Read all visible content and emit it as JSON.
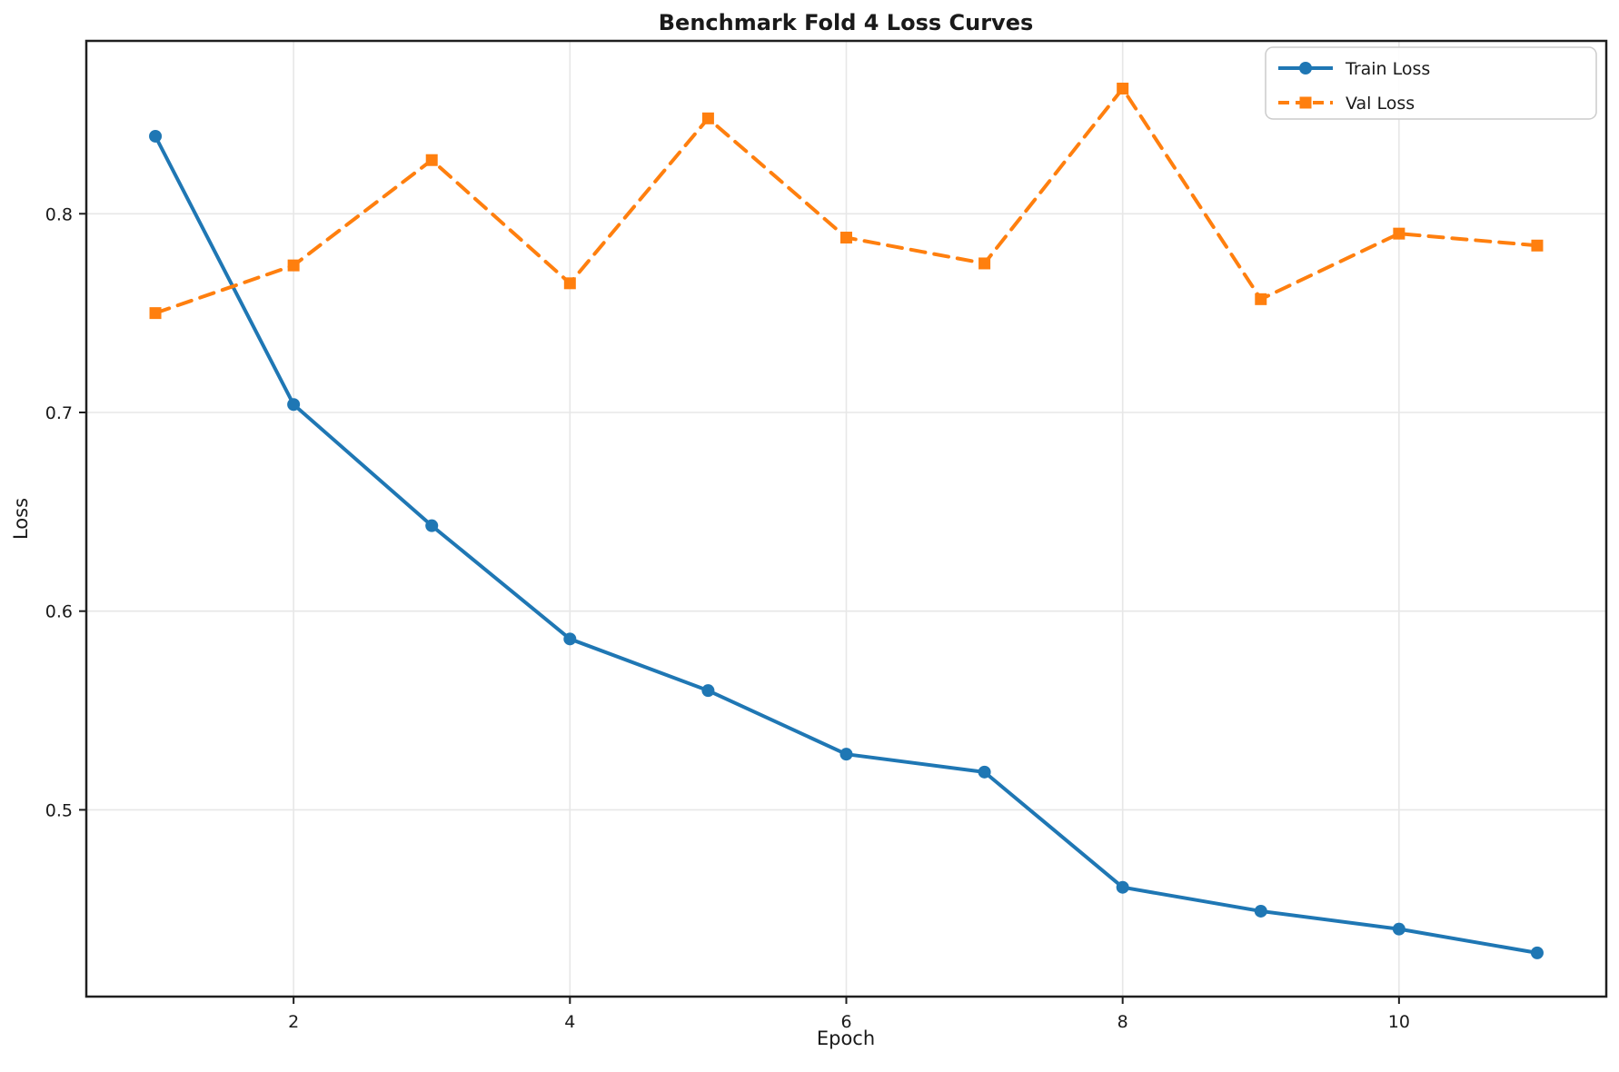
{
  "chart_data": {
    "type": "line",
    "title": "Benchmark Fold 4 Loss Curves",
    "xlabel": "Epoch",
    "ylabel": "Loss",
    "x": [
      1,
      2,
      3,
      4,
      5,
      6,
      7,
      8,
      9,
      10,
      11
    ],
    "series": [
      {
        "name": "Train Loss",
        "values": [
          0.839,
          0.704,
          0.643,
          0.586,
          0.56,
          0.528,
          0.519,
          0.461,
          0.449,
          0.44,
          0.428
        ],
        "color": "#1f77b4",
        "line_style": "solid",
        "marker": "circle"
      },
      {
        "name": "Val Loss",
        "values": [
          0.75,
          0.774,
          0.827,
          0.765,
          0.848,
          0.788,
          0.775,
          0.863,
          0.757,
          0.79,
          0.784
        ],
        "color": "#ff7f0e",
        "line_style": "dashed",
        "marker": "square"
      }
    ],
    "xlim": [
      0.5,
      11.5
    ],
    "ylim": [
      0.406,
      0.887
    ],
    "x_ticks": [
      2,
      4,
      6,
      8,
      10
    ],
    "y_ticks": [
      0.5,
      0.6,
      0.7,
      0.8
    ],
    "grid": true,
    "legend_position": "upper right",
    "colors": {
      "grid": "#e7e7e7",
      "spine": "#1f1f1f",
      "text": "#1a1a1a",
      "background": "#ffffff",
      "legend_border": "#cccccc"
    }
  }
}
